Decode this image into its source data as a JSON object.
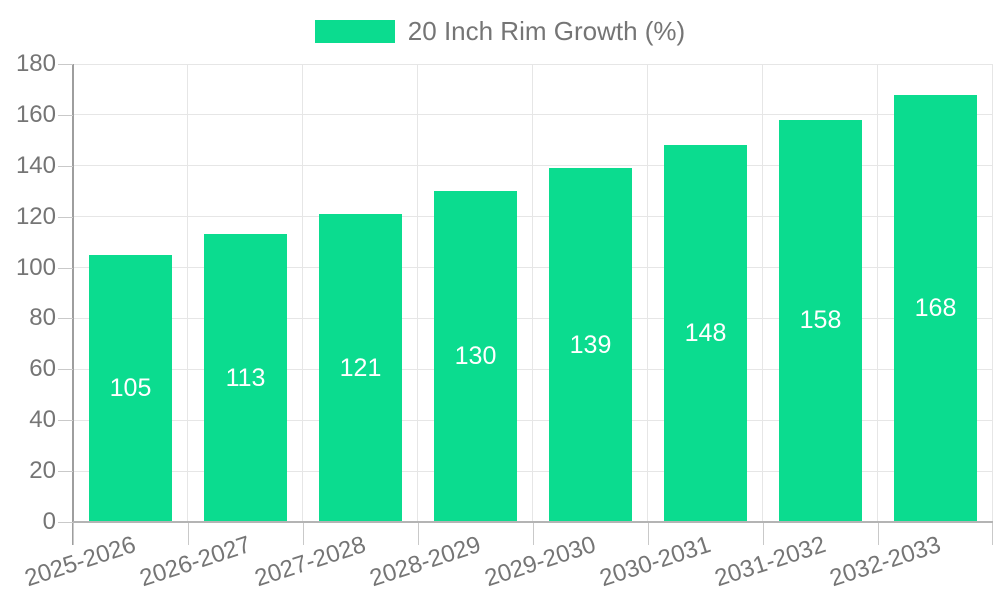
{
  "chart_data": {
    "type": "bar",
    "legend": "20 Inch Rim Growth (%)",
    "legend_position": "top",
    "categories": [
      "2025-2026",
      "2026-2027",
      "2027-2028",
      "2028-2029",
      "2029-2030",
      "2030-2031",
      "2031-2032",
      "2032-2033"
    ],
    "values": [
      105,
      113,
      121,
      130,
      139,
      148,
      158,
      168
    ],
    "yticks": [
      0,
      20,
      40,
      60,
      80,
      100,
      120,
      140,
      160,
      180
    ],
    "ylim": [
      0,
      180
    ],
    "grid": true,
    "bar_color": "#0bdc8f",
    "bar_label_color": "#ffffff",
    "axis_text_color": "#757575"
  }
}
